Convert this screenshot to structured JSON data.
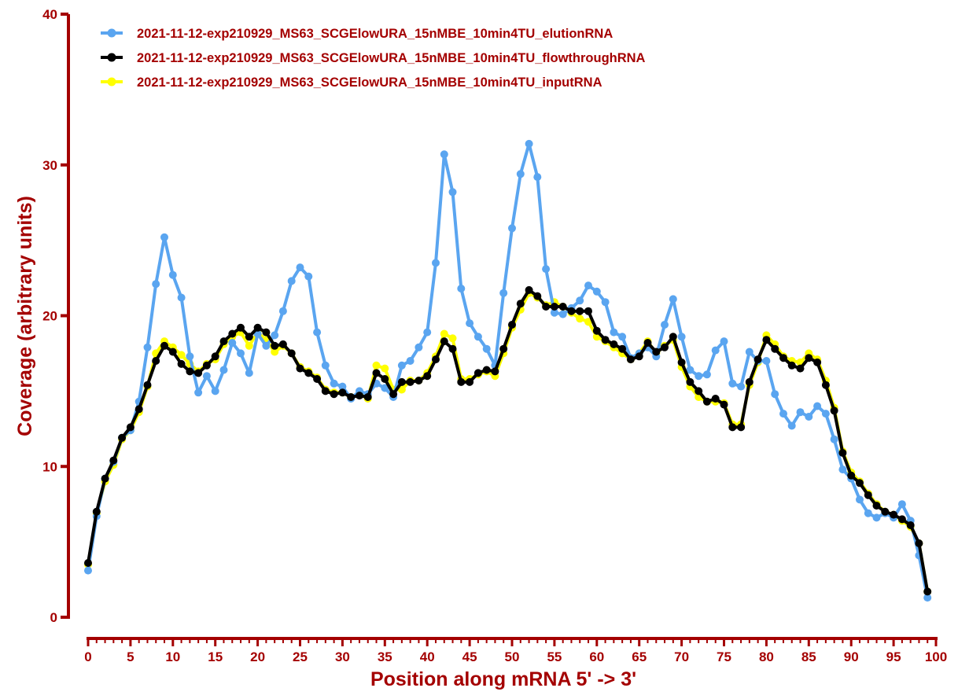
{
  "chart_data": {
    "type": "line",
    "title": "",
    "xlabel": "Position along mRNA 5' -> 3'",
    "ylabel": "Coverage (arbitrary units)",
    "xlim": [
      0,
      100
    ],
    "ylim": [
      0,
      40
    ],
    "xticks": [
      0,
      5,
      10,
      15,
      20,
      25,
      30,
      35,
      40,
      45,
      50,
      55,
      60,
      65,
      70,
      75,
      80,
      85,
      90,
      95,
      100
    ],
    "yticks": [
      0,
      10,
      20,
      30,
      40
    ],
    "grid": false,
    "legend_position": "top-left",
    "axis_color": "#a40000",
    "x": [
      0,
      1,
      2,
      3,
      4,
      5,
      6,
      7,
      8,
      9,
      10,
      11,
      12,
      13,
      14,
      15,
      16,
      17,
      18,
      19,
      20,
      21,
      22,
      23,
      24,
      25,
      26,
      27,
      28,
      29,
      30,
      31,
      32,
      33,
      34,
      35,
      36,
      37,
      38,
      39,
      40,
      41,
      42,
      43,
      44,
      45,
      46,
      47,
      48,
      49,
      50,
      51,
      52,
      53,
      54,
      55,
      56,
      57,
      58,
      59,
      60,
      61,
      62,
      63,
      64,
      65,
      66,
      67,
      68,
      69,
      70,
      71,
      72,
      73,
      74,
      75,
      76,
      77,
      78,
      79,
      80,
      81,
      82,
      83,
      84,
      85,
      86,
      87,
      88,
      89,
      90,
      91,
      92,
      93,
      94,
      95,
      96,
      97,
      98,
      99
    ],
    "series": [
      {
        "name": "2021-11-12-exp210929_MS63_SCGElowURA_15nMBE_10min4TU_inputRNA",
        "color": "#ffff00",
        "values": [
          3.5,
          6.9,
          9.0,
          10.1,
          11.8,
          12.4,
          13.6,
          15.3,
          17.5,
          18.3,
          17.9,
          17.4,
          16.8,
          16.3,
          16.8,
          17.1,
          18.1,
          18.6,
          18.9,
          18.0,
          18.9,
          18.4,
          17.6,
          18.0,
          17.5,
          16.6,
          16.3,
          15.9,
          15.1,
          14.9,
          14.9,
          14.6,
          14.8,
          14.5,
          16.7,
          16.5,
          15.1,
          15.1,
          15.7,
          15.7,
          16.2,
          17.3,
          18.8,
          18.5,
          15.8,
          15.8,
          16.1,
          16.3,
          16.0,
          17.5,
          19.2,
          20.4,
          21.5,
          21.2,
          20.7,
          20.9,
          20.6,
          20.2,
          19.8,
          19.6,
          18.6,
          18.3,
          17.9,
          17.5,
          17.1,
          17.5,
          18.3,
          17.5,
          18.0,
          18.4,
          16.6,
          15.3,
          14.6,
          14.3,
          14.3,
          14.2,
          12.8,
          12.8,
          15.4,
          16.9,
          18.7,
          18.1,
          17.3,
          17.0,
          16.9,
          17.5,
          17.1,
          15.7,
          13.9,
          11.0,
          9.6,
          9.0,
          8.2,
          7.5,
          7.0,
          6.8,
          6.4,
          6.0,
          4.9,
          1.7
        ]
      },
      {
        "name": "2021-11-12-exp210929_MS63_SCGElowURA_15nMBE_10min4TU_elutionRNA",
        "color": "#5aa5f0",
        "values": [
          3.1,
          6.7,
          9.2,
          10.3,
          11.9,
          12.4,
          14.3,
          17.9,
          22.1,
          25.2,
          22.7,
          21.2,
          17.3,
          14.9,
          16.0,
          15.0,
          16.4,
          18.2,
          17.5,
          16.2,
          18.8,
          18.0,
          18.7,
          20.3,
          22.3,
          23.2,
          22.6,
          18.9,
          16.7,
          15.5,
          15.3,
          14.5,
          15.0,
          14.8,
          15.5,
          15.2,
          14.6,
          16.7,
          17.0,
          17.9,
          18.9,
          23.5,
          30.7,
          28.2,
          21.8,
          19.5,
          18.6,
          17.8,
          16.7,
          21.5,
          25.8,
          29.4,
          31.4,
          29.2,
          23.1,
          20.2,
          20.1,
          20.5,
          21.0,
          22.0,
          21.6,
          20.9,
          18.9,
          18.6,
          17.2,
          17.5,
          17.9,
          17.3,
          19.4,
          21.1,
          18.6,
          16.4,
          16.0,
          16.1,
          17.7,
          18.3,
          15.5,
          15.3,
          17.6,
          17.0,
          17.0,
          14.8,
          13.5,
          12.7,
          13.6,
          13.3,
          14.0,
          13.5,
          11.8,
          9.8,
          9.2,
          7.8,
          6.9,
          6.6,
          6.9,
          6.6,
          7.5,
          6.4,
          4.1,
          1.3
        ]
      },
      {
        "name": "2021-11-12-exp210929_MS63_SCGElowURA_15nMBE_10min4TU_flowthroughRNA",
        "color": "#000000",
        "values": [
          3.6,
          7.0,
          9.2,
          10.4,
          11.9,
          12.6,
          13.8,
          15.4,
          17.0,
          18.0,
          17.6,
          16.8,
          16.3,
          16.2,
          16.7,
          17.3,
          18.3,
          18.8,
          19.2,
          18.6,
          19.2,
          18.9,
          18.0,
          18.1,
          17.5,
          16.5,
          16.2,
          15.8,
          15.0,
          14.8,
          14.9,
          14.6,
          14.7,
          14.6,
          16.2,
          15.8,
          14.8,
          15.6,
          15.6,
          15.7,
          16.0,
          17.1,
          18.3,
          17.8,
          15.6,
          15.6,
          16.2,
          16.4,
          16.3,
          17.8,
          19.4,
          20.8,
          21.7,
          21.3,
          20.6,
          20.6,
          20.6,
          20.3,
          20.3,
          20.3,
          19.0,
          18.4,
          18.1,
          17.8,
          17.1,
          17.3,
          18.2,
          17.6,
          17.9,
          18.6,
          16.9,
          15.6,
          15.0,
          14.3,
          14.5,
          14.1,
          12.6,
          12.6,
          15.6,
          17.1,
          18.4,
          17.8,
          17.2,
          16.7,
          16.5,
          17.2,
          16.9,
          15.4,
          13.7,
          10.9,
          9.4,
          8.9,
          8.1,
          7.4,
          7.0,
          6.8,
          6.5,
          6.1,
          4.9,
          1.7
        ]
      }
    ],
    "legend": [
      {
        "label": "2021-11-12-exp210929_MS63_SCGElowURA_15nMBE_10min4TU_elutionRNA",
        "color": "#5aa5f0"
      },
      {
        "label": "2021-11-12-exp210929_MS63_SCGElowURA_15nMBE_10min4TU_flowthroughRNA",
        "color": "#000000"
      },
      {
        "label": "2021-11-12-exp210929_MS63_SCGElowURA_15nMBE_10min4TU_inputRNA",
        "color": "#ffff00"
      }
    ]
  }
}
